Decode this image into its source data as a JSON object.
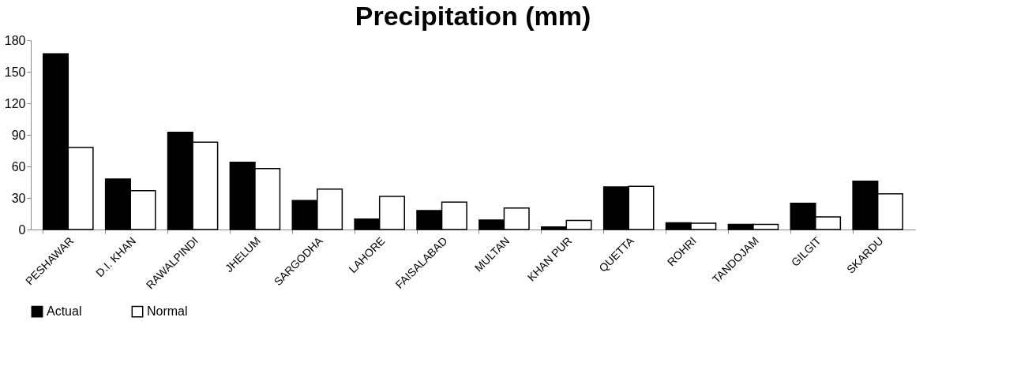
{
  "chart_data": {
    "type": "bar",
    "title": "Precipitation (mm)",
    "categories": [
      "PESHAWAR",
      "D.I. KHAN",
      "RAWALPINDI",
      "JHELUM",
      "SARGODHA",
      "LAHORE",
      "FAISALABAD",
      "MULTAN",
      "KHAN PUR",
      "QUETTA",
      "ROHRI",
      "TANDOJAM",
      "GILGIT",
      "SKARDU"
    ],
    "series": [
      {
        "name": "Actual",
        "color": "#000000",
        "values": [
          167,
          48,
          92.5,
          64,
          27.5,
          10,
          18,
          9,
          2.4,
          40.5,
          6.4,
          4.8,
          25,
          46
        ]
      },
      {
        "name": "Normal",
        "color": "#ffffff",
        "values": [
          78,
          37,
          83,
          58,
          38.5,
          31.5,
          26,
          20.5,
          8.7,
          41,
          6,
          4.8,
          12,
          34
        ]
      }
    ],
    "ylim": [
      0,
      180
    ],
    "yticks": [
      0,
      30,
      60,
      90,
      120,
      150,
      180
    ],
    "grid": false,
    "legend": "bottom"
  }
}
